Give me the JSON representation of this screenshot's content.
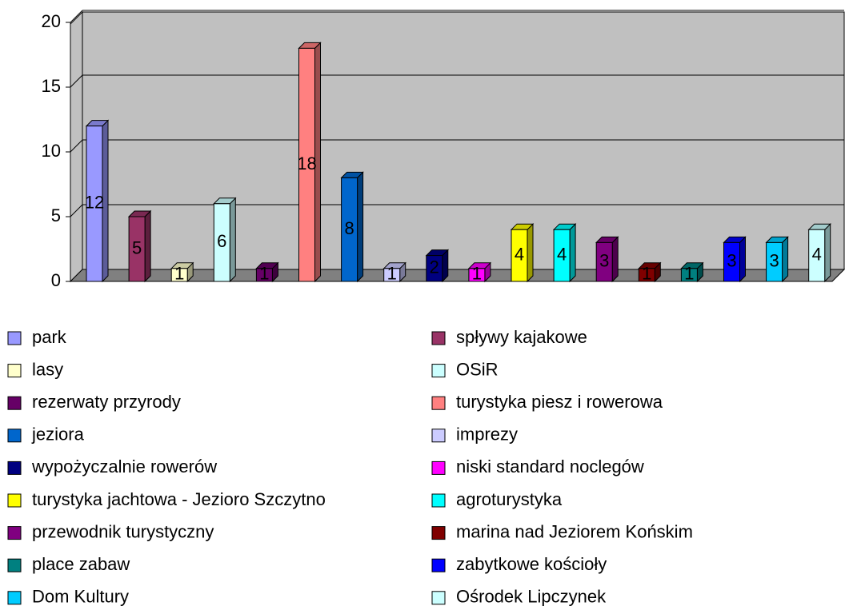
{
  "chart_data": {
    "type": "bar3d",
    "ylim": [
      0,
      20
    ],
    "yticks": [
      0,
      5,
      10,
      15,
      20
    ],
    "grid": true,
    "legend": "bottom",
    "series": [
      {
        "name": "park",
        "color": "#9999ff",
        "values": [
          12
        ]
      },
      {
        "name": "spływy kajakowe",
        "color": "#993366",
        "values": [
          5
        ]
      },
      {
        "name": "lasy",
        "color": "#ffffcc",
        "values": [
          1
        ]
      },
      {
        "name": "OSiR",
        "color": "#ccffff",
        "values": [
          6
        ]
      },
      {
        "name": "rezerwaty przyrody",
        "color": "#660066",
        "values": [
          1
        ]
      },
      {
        "name": "turystyka piesz i rowerowa",
        "color": "#ff8080",
        "values": [
          18
        ]
      },
      {
        "name": "jeziora",
        "color": "#0066cc",
        "values": [
          8
        ]
      },
      {
        "name": "imprezy",
        "color": "#ccccff",
        "values": [
          1
        ]
      },
      {
        "name": "wypożyczalnie rowerów",
        "color": "#000080",
        "values": [
          2
        ]
      },
      {
        "name": "niski standard noclegów",
        "color": "#ff00ff",
        "values": [
          1
        ]
      },
      {
        "name": "turystyka jachtowa - Jezioro Szczytno",
        "color": "#ffff00",
        "values": [
          4
        ]
      },
      {
        "name": "agroturystyka",
        "color": "#00ffff",
        "values": [
          4
        ]
      },
      {
        "name": "przewodnik turystyczny",
        "color": "#800080",
        "values": [
          3
        ]
      },
      {
        "name": "marina nad Jeziorem Końskim",
        "color": "#800000",
        "values": [
          1
        ]
      },
      {
        "name": "place zabaw",
        "color": "#008080",
        "values": [
          1
        ]
      },
      {
        "name": "zabytkowe kościoły",
        "color": "#0000ff",
        "values": [
          3
        ]
      },
      {
        "name": "Dom Kultury",
        "color": "#00ccff",
        "values": [
          3
        ]
      },
      {
        "name": "Ośrodek Lipczynek",
        "color": "#ccffff",
        "values": [
          4
        ]
      }
    ]
  }
}
